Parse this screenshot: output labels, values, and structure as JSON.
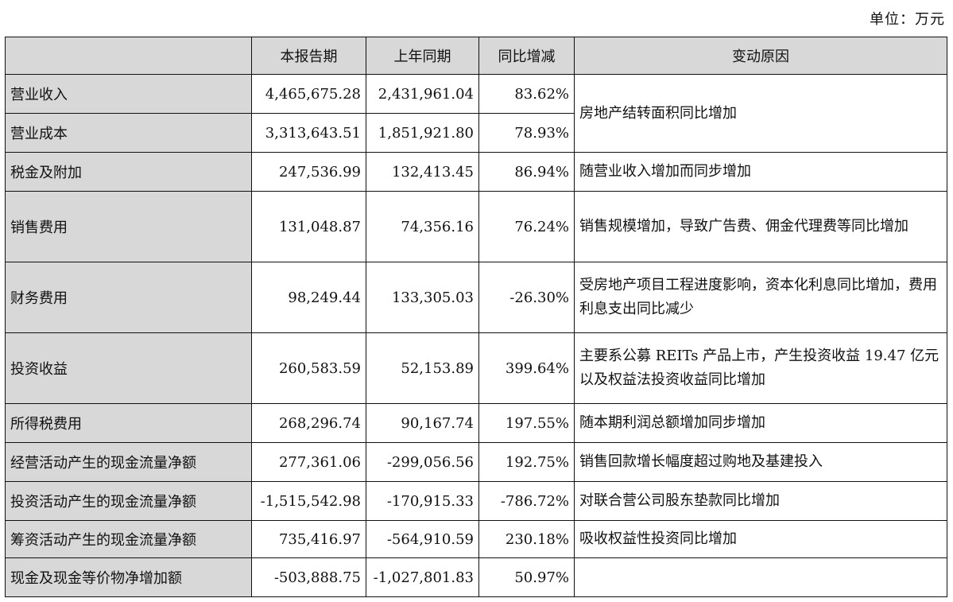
{
  "unit_label": "单位：万元",
  "table": {
    "headers": [
      "",
      "本报告期",
      "上年同期",
      "同比增减",
      "变动原因"
    ],
    "rows": [
      {
        "item": "营业收入",
        "current": "4,465,675.28",
        "previous": "2,431,961.04",
        "change": "83.62%",
        "reason": "房地产结转面积同比增加"
      },
      {
        "item": "营业成本",
        "current": "3,313,643.51",
        "previous": "1,851,921.80",
        "change": "78.93%",
        "reason": ""
      },
      {
        "item": "税金及附加",
        "current": "247,536.99",
        "previous": "132,413.45",
        "change": "86.94%",
        "reason": "随营业收入增加而同步增加"
      },
      {
        "item": "销售费用",
        "current": "131,048.87",
        "previous": "74,356.16",
        "change": "76.24%",
        "reason": "销售规模增加，导致广告费、佣金代理费等同比增加"
      },
      {
        "item": "财务费用",
        "current": "98,249.44",
        "previous": "133,305.03",
        "change": "-26.30%",
        "reason": "受房地产项目工程进度影响，资本化利息同比增加，费用利息支出同比减少"
      },
      {
        "item": "投资收益",
        "current": "260,583.59",
        "previous": "52,153.89",
        "change": "399.64%",
        "reason": "主要系公募 REITs 产品上市，产生投资收益 19.47 亿元以及权益法投资收益同比增加"
      },
      {
        "item": "所得税费用",
        "current": "268,296.74",
        "previous": "90,167.74",
        "change": "197.55%",
        "reason": "随本期利润总额增加同步增加"
      },
      {
        "item": "经营活动产生的现金流量净额",
        "current": "277,361.06",
        "previous": "-299,056.56",
        "change": "192.75%",
        "reason": "销售回款增长幅度超过购地及基建投入"
      },
      {
        "item": "投资活动产生的现金流量净额",
        "current": "-1,515,542.98",
        "previous": "-170,915.33",
        "change": "-786.72%",
        "reason": "对联合营公司股东垫款同比增加"
      },
      {
        "item": "筹资活动产生的现金流量净额",
        "current": "735,416.97",
        "previous": "-564,910.59",
        "change": "230.18%",
        "reason": "吸收权益性投资同比增加"
      },
      {
        "item": "现金及现金等价物净增加额",
        "current": "-503,888.75",
        "previous": "-1,027,801.83",
        "change": "50.97%",
        "reason": ""
      }
    ]
  }
}
